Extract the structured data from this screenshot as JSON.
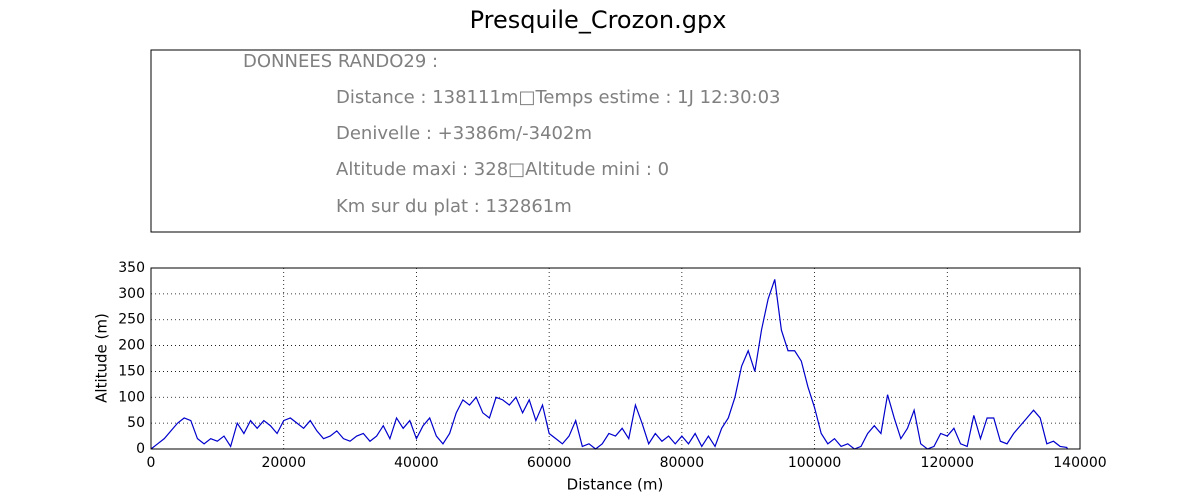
{
  "chart_data": {
    "type": "line",
    "title": "Presquile_Crozon.gpx",
    "info_lines": [
      "DONNEES RANDO29  :",
      "Distance : 138111m□Temps estime : 1J 12:30:03",
      "Denivelle : +3386m/-3402m",
      "Altitude maxi : 328□Altitude mini : 0",
      "Km sur du plat : 132861m"
    ],
    "x_label": "Distance (m)",
    "y_label": "Altitude (m)",
    "xlim": [
      0,
      140000
    ],
    "ylim": [
      0,
      350
    ],
    "xticks": [
      0,
      20000,
      40000,
      60000,
      80000,
      100000,
      120000,
      140000
    ],
    "yticks": [
      0,
      50,
      100,
      150,
      200,
      250,
      300,
      350
    ],
    "grid": true,
    "x": [
      0,
      1000,
      2000,
      3000,
      4000,
      5000,
      6000,
      7000,
      8000,
      9000,
      10000,
      11000,
      12000,
      13000,
      14000,
      15000,
      16000,
      17000,
      18000,
      19000,
      20000,
      21000,
      22000,
      23000,
      24000,
      25000,
      26000,
      27000,
      28000,
      29000,
      30000,
      31000,
      32000,
      33000,
      34000,
      35000,
      36000,
      37000,
      38000,
      39000,
      40000,
      41000,
      42000,
      43000,
      44000,
      45000,
      46000,
      47000,
      48000,
      49000,
      50000,
      51000,
      52000,
      53000,
      54000,
      55000,
      56000,
      57000,
      58000,
      59000,
      60000,
      61000,
      62000,
      63000,
      64000,
      65000,
      66000,
      67000,
      68000,
      69000,
      70000,
      71000,
      72000,
      73000,
      74000,
      75000,
      76000,
      77000,
      78000,
      79000,
      80000,
      81000,
      82000,
      83000,
      84000,
      85000,
      86000,
      87000,
      88000,
      89000,
      90000,
      91000,
      92000,
      93000,
      94000,
      95000,
      96000,
      97000,
      98000,
      99000,
      100000,
      101000,
      102000,
      103000,
      104000,
      105000,
      106000,
      107000,
      108000,
      109000,
      110000,
      111000,
      112000,
      113000,
      114000,
      115000,
      116000,
      117000,
      118000,
      119000,
      120000,
      121000,
      122000,
      123000,
      124000,
      125000,
      126000,
      127000,
      128000,
      129000,
      130000,
      131000,
      132000,
      133000,
      134000,
      135000,
      136000,
      137000,
      138000,
      138111
    ],
    "series": [
      {
        "name": "Altitude",
        "color": "#0000cc",
        "values": [
          0,
          10,
          20,
          35,
          50,
          60,
          55,
          20,
          10,
          20,
          15,
          25,
          5,
          50,
          30,
          55,
          40,
          55,
          45,
          30,
          55,
          60,
          50,
          40,
          55,
          35,
          20,
          25,
          35,
          20,
          15,
          25,
          30,
          15,
          25,
          45,
          20,
          60,
          40,
          55,
          20,
          45,
          60,
          25,
          10,
          30,
          70,
          95,
          85,
          100,
          70,
          60,
          100,
          95,
          85,
          100,
          70,
          95,
          55,
          85,
          30,
          20,
          10,
          25,
          55,
          5,
          10,
          0,
          10,
          30,
          25,
          40,
          20,
          85,
          50,
          10,
          30,
          15,
          25,
          10,
          25,
          10,
          30,
          5,
          25,
          5,
          40,
          60,
          100,
          160,
          190,
          150,
          230,
          290,
          328,
          230,
          190,
          190,
          170,
          120,
          80,
          30,
          10,
          20,
          5,
          10,
          0,
          5,
          30,
          45,
          30,
          105,
          60,
          20,
          40,
          75,
          10,
          0,
          5,
          30,
          25,
          40,
          10,
          5,
          65,
          20,
          60,
          60,
          15,
          10,
          30,
          45,
          60,
          75,
          60,
          10,
          15,
          5,
          3,
          0
        ]
      }
    ]
  }
}
